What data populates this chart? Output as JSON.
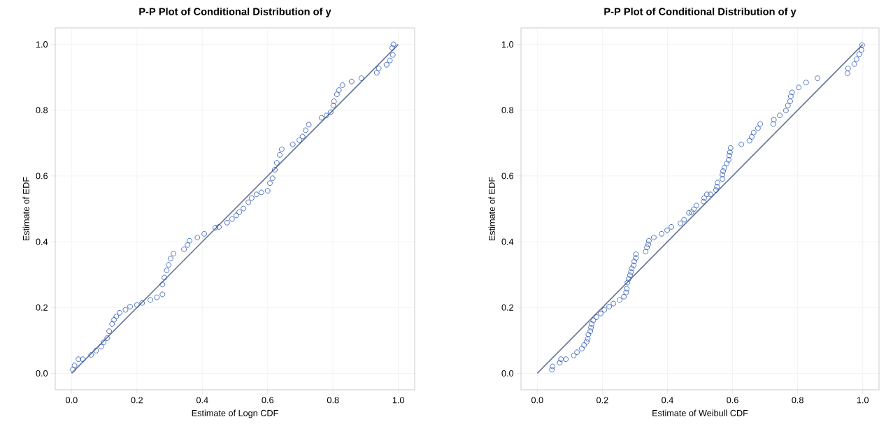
{
  "chart_data": [
    {
      "type": "scatter",
      "title": "P-P Plot of Conditional Distribution of y",
      "xlabel": "Estimate of Logn CDF",
      "ylabel": "Estimate of EDF",
      "xlim": [
        -0.05,
        1.05
      ],
      "ylim": [
        -0.05,
        1.05
      ],
      "xticks": [
        {
          "value": 0,
          "label": "0.0"
        },
        {
          "value": 0.2,
          "label": "0.2"
        },
        {
          "value": 0.4,
          "label": "0.4"
        },
        {
          "value": 0.6,
          "label": "0.6"
        },
        {
          "value": 0.8,
          "label": "0.8"
        },
        {
          "value": 1,
          "label": "1.0"
        }
      ],
      "yticks": [
        {
          "value": 0,
          "label": "0.0"
        },
        {
          "value": 0.2,
          "label": "0.2"
        },
        {
          "value": 0.4,
          "label": "0.4"
        },
        {
          "value": 0.6,
          "label": "0.6"
        },
        {
          "value": 0.8,
          "label": "0.8"
        },
        {
          "value": 1,
          "label": "1.0"
        }
      ],
      "grid": true,
      "series": [
        {
          "marker": "circle",
          "color": "#1f4fb4",
          "x": [
            0.004,
            0.009,
            0.021,
            0.034,
            0.06,
            0.075,
            0.09,
            0.098,
            0.109,
            0.115,
            0.124,
            0.13,
            0.137,
            0.147,
            0.165,
            0.179,
            0.2,
            0.216,
            0.241,
            0.261,
            0.278,
            0.278,
            0.284,
            0.291,
            0.297,
            0.303,
            0.312,
            0.344,
            0.355,
            0.361,
            0.385,
            0.406,
            0.44,
            0.451,
            0.476,
            0.491,
            0.504,
            0.513,
            0.526,
            0.541,
            0.551,
            0.566,
            0.581,
            0.6,
            0.607,
            0.615,
            0.622,
            0.628,
            0.637,
            0.643,
            0.677,
            0.697,
            0.707,
            0.716,
            0.726,
            0.765,
            0.78,
            0.793,
            0.801,
            0.803,
            0.812,
            0.818,
            0.829,
            0.857,
            0.887,
            0.934,
            0.94,
            0.964,
            0.974,
            0.983,
            0.981,
            0.985
          ],
          "values": [
            0.011,
            0.024,
            0.043,
            0.043,
            0.056,
            0.069,
            0.081,
            0.094,
            0.107,
            0.128,
            0.15,
            0.163,
            0.173,
            0.184,
            0.193,
            0.203,
            0.208,
            0.214,
            0.223,
            0.231,
            0.24,
            0.27,
            0.291,
            0.313,
            0.33,
            0.349,
            0.364,
            0.377,
            0.39,
            0.403,
            0.413,
            0.424,
            0.443,
            0.445,
            0.458,
            0.469,
            0.48,
            0.49,
            0.501,
            0.52,
            0.533,
            0.544,
            0.55,
            0.555,
            0.578,
            0.593,
            0.619,
            0.64,
            0.664,
            0.681,
            0.696,
            0.709,
            0.72,
            0.739,
            0.756,
            0.777,
            0.784,
            0.794,
            0.814,
            0.827,
            0.848,
            0.861,
            0.876,
            0.887,
            0.897,
            0.914,
            0.927,
            0.938,
            0.951,
            0.968,
            0.989,
            1.0
          ]
        },
        {
          "type": "line",
          "color": "#6b7a99",
          "x": [
            0,
            1
          ],
          "values": [
            0,
            1
          ]
        }
      ]
    },
    {
      "type": "scatter",
      "title": "P-P Plot of Conditional Distribution of y",
      "xlabel": "Estimate of Weibull CDF",
      "ylabel": "Estimate of EDF",
      "xlim": [
        -0.05,
        1.05
      ],
      "ylim": [
        -0.05,
        1.05
      ],
      "xticks": [
        {
          "value": 0,
          "label": "0.0"
        },
        {
          "value": 0.2,
          "label": "0.2"
        },
        {
          "value": 0.4,
          "label": "0.4"
        },
        {
          "value": 0.6,
          "label": "0.6"
        },
        {
          "value": 0.8,
          "label": "0.8"
        },
        {
          "value": 1,
          "label": "1.0"
        }
      ],
      "yticks": [
        {
          "value": 0,
          "label": "0.0"
        },
        {
          "value": 0.2,
          "label": "0.2"
        },
        {
          "value": 0.4,
          "label": "0.4"
        },
        {
          "value": 0.6,
          "label": "0.6"
        },
        {
          "value": 0.8,
          "label": "0.8"
        },
        {
          "value": 1,
          "label": "1.0"
        }
      ],
      "grid": true,
      "series": [
        {
          "marker": "circle",
          "color": "#1f4fb4",
          "x": [
            0.045,
            0.047,
            0.069,
            0.073,
            0.088,
            0.112,
            0.122,
            0.137,
            0.144,
            0.152,
            0.155,
            0.157,
            0.163,
            0.165,
            0.167,
            0.172,
            0.182,
            0.195,
            0.206,
            0.221,
            0.234,
            0.253,
            0.266,
            0.273,
            0.275,
            0.277,
            0.281,
            0.285,
            0.288,
            0.29,
            0.296,
            0.298,
            0.303,
            0.303,
            0.333,
            0.337,
            0.341,
            0.343,
            0.358,
            0.382,
            0.399,
            0.412,
            0.44,
            0.451,
            0.466,
            0.474,
            0.481,
            0.489,
            0.511,
            0.513,
            0.521,
            0.532,
            0.549,
            0.552,
            0.554,
            0.569,
            0.569,
            0.571,
            0.575,
            0.582,
            0.588,
            0.59,
            0.592,
            0.594,
            0.627,
            0.652,
            0.659,
            0.665,
            0.678,
            0.685,
            0.725,
            0.727,
            0.745,
            0.764,
            0.77,
            0.777,
            0.779,
            0.783,
            0.803,
            0.826,
            0.861,
            0.953,
            0.955,
            0.974,
            0.981,
            0.989,
            0.996,
            0.998
          ],
          "values": [
            0.011,
            0.021,
            0.032,
            0.043,
            0.043,
            0.054,
            0.064,
            0.075,
            0.086,
            0.096,
            0.105,
            0.118,
            0.128,
            0.139,
            0.15,
            0.161,
            0.171,
            0.182,
            0.193,
            0.203,
            0.212,
            0.223,
            0.233,
            0.246,
            0.257,
            0.276,
            0.287,
            0.298,
            0.308,
            0.319,
            0.328,
            0.34,
            0.351,
            0.362,
            0.37,
            0.383,
            0.392,
            0.403,
            0.413,
            0.424,
            0.435,
            0.445,
            0.456,
            0.467,
            0.488,
            0.49,
            0.499,
            0.51,
            0.522,
            0.533,
            0.544,
            0.544,
            0.557,
            0.567,
            0.58,
            0.591,
            0.604,
            0.615,
            0.625,
            0.638,
            0.649,
            0.662,
            0.672,
            0.685,
            0.696,
            0.707,
            0.719,
            0.732,
            0.745,
            0.758,
            0.758,
            0.771,
            0.784,
            0.799,
            0.814,
            0.827,
            0.842,
            0.854,
            0.869,
            0.884,
            0.897,
            0.912,
            0.927,
            0.94,
            0.955,
            0.97,
            0.983,
            0.998
          ]
        },
        {
          "type": "line",
          "color": "#6b7a99",
          "x": [
            0,
            1
          ],
          "values": [
            0,
            1
          ]
        }
      ]
    }
  ]
}
